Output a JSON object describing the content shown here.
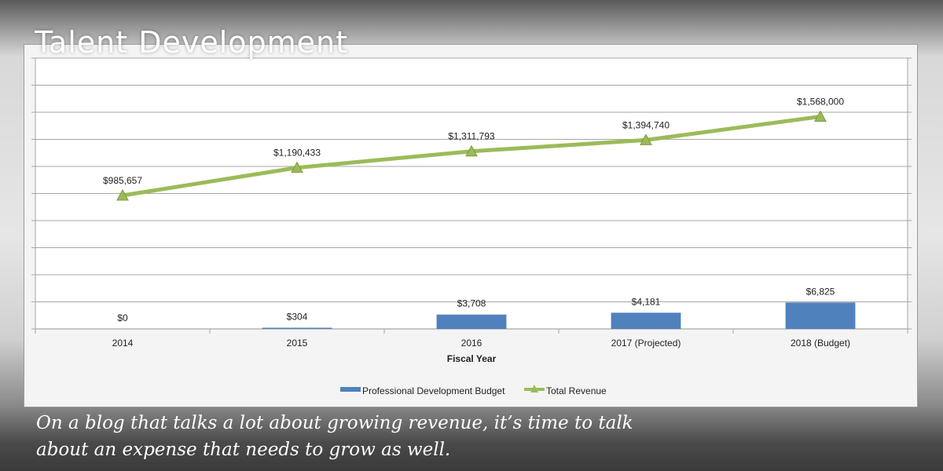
{
  "header": {
    "title": "Talent Development"
  },
  "caption": {
    "line1": "On a blog that talks a lot about growing revenue, it’s time to talk",
    "line2": "about an expense that needs to grow as well."
  },
  "colors": {
    "bar": "#4f81bd",
    "line": "#9bbb59",
    "grid": "#a6a6a6"
  },
  "chart_data": {
    "type": "bar",
    "categories": [
      "2014",
      "2015",
      "2016",
      "2017 (Projected)",
      "2018 (Budget)"
    ],
    "xlabel": "Fiscal Year",
    "legend_position": "bottom",
    "series": [
      {
        "name": "Professional Development Budget",
        "kind": "bar",
        "values": [
          0,
          304,
          3708,
          4181,
          6825
        ],
        "labels": [
          "$0",
          "$304",
          "$3,708",
          "$4,181",
          "$6,825"
        ]
      },
      {
        "name": "Total Revenue",
        "kind": "line",
        "marker": "triangle",
        "values": [
          985657,
          1190433,
          1311793,
          1394740,
          1568000
        ],
        "labels": [
          "$985,657",
          "$1,190,433",
          "$1,311,793",
          "$1,394,740",
          "$1,568,000"
        ]
      }
    ],
    "bar_ylim": [
      0,
      70000
    ],
    "line_ylim": [
      0,
      2000000
    ],
    "grid": true
  }
}
